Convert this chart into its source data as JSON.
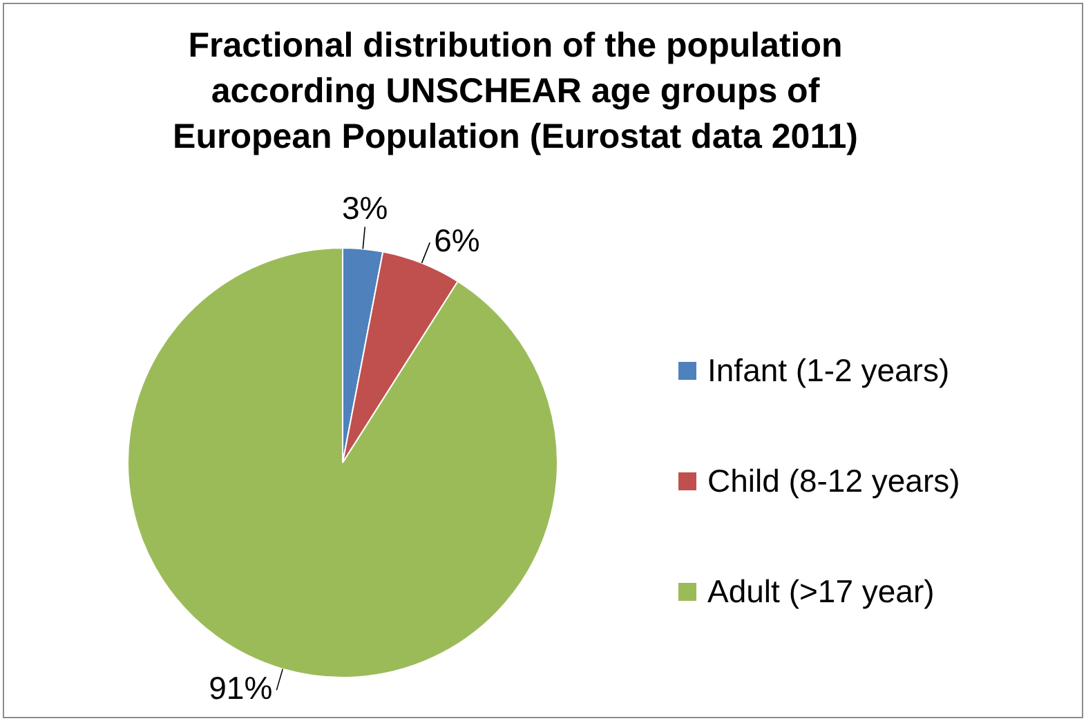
{
  "chart_data": {
    "type": "pie",
    "title": "Fractional distribution of the population according UNSCHEAR age groups of European Population (Eurostat data 2011)",
    "categories": [
      "Infant (1-2 years)",
      "Child (8-12 years)",
      "Adult (>17 year)"
    ],
    "values": [
      3,
      6,
      91
    ],
    "colors": [
      "#4f81bd",
      "#c0504d",
      "#9bbb59"
    ],
    "value_labels": [
      "3%",
      "6%",
      "91%"
    ],
    "legend": "right"
  }
}
